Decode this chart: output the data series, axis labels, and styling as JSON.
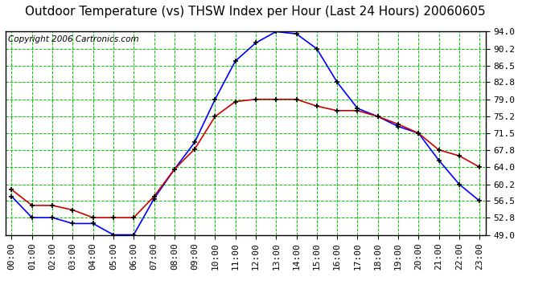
{
  "title": "Outdoor Temperature (vs) THSW Index per Hour (Last 24 Hours) 20060605",
  "copyright": "Copyright 2006 Cartronics.com",
  "hours": [
    "00:00",
    "01:00",
    "02:00",
    "03:00",
    "04:00",
    "05:00",
    "06:00",
    "07:00",
    "08:00",
    "09:00",
    "10:00",
    "11:00",
    "12:00",
    "13:00",
    "14:00",
    "15:00",
    "16:00",
    "17:00",
    "18:00",
    "19:00",
    "20:00",
    "21:00",
    "22:00",
    "23:00"
  ],
  "thsw_values": [
    57.5,
    52.8,
    52.8,
    51.5,
    51.5,
    49.0,
    49.0,
    57.0,
    63.5,
    69.5,
    79.0,
    87.5,
    91.5,
    94.0,
    93.5,
    90.2,
    82.8,
    77.0,
    75.2,
    73.0,
    71.5,
    65.5,
    60.2,
    56.5
  ],
  "temp_values": [
    59.0,
    55.5,
    55.5,
    54.5,
    52.8,
    52.8,
    52.8,
    57.5,
    63.5,
    68.0,
    75.2,
    78.5,
    79.0,
    79.0,
    79.0,
    77.5,
    76.5,
    76.5,
    75.2,
    73.5,
    71.5,
    67.8,
    66.5,
    64.0
  ],
  "ylim": [
    49.0,
    94.0
  ],
  "yticks": [
    49.0,
    52.8,
    56.5,
    60.2,
    64.0,
    67.8,
    71.5,
    75.2,
    79.0,
    82.8,
    86.5,
    90.2,
    94.0
  ],
  "ytick_labels": [
    "49.0",
    "52.8",
    "56.5",
    "60.2",
    "64.0",
    "67.8",
    "71.5",
    "75.2",
    "79.0",
    "82.8",
    "86.5",
    "90.2",
    "94.0"
  ],
  "thsw_color": "#0000ff",
  "temp_color": "#cc0000",
  "bg_color": "#ffffff",
  "grid_color": "#00cc00",
  "title_fontsize": 11,
  "tick_fontsize": 8,
  "copyright_fontsize": 7.5
}
